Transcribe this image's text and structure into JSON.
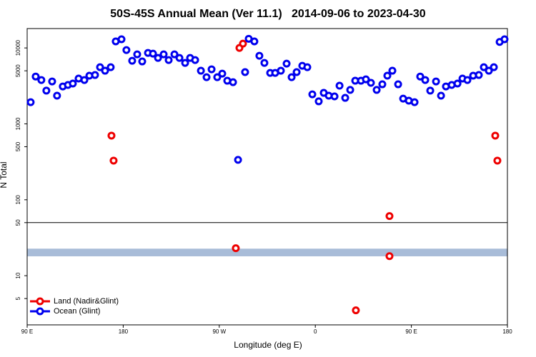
{
  "chart_data": {
    "type": "scatter",
    "title": "50S-45S Annual Mean (Ver 11.1)   2014-09-06 to 2023-04-30",
    "x_label": "Longitude (deg E)",
    "y_label": "N Total",
    "xlim": [
      90,
      540
    ],
    "xticks": [
      {
        "value": 90,
        "label": "90 E"
      },
      {
        "value": 180,
        "label": "180"
      },
      {
        "value": 270,
        "label": "90 W"
      },
      {
        "value": 360,
        "label": "0"
      },
      {
        "value": 450,
        "label": "90 E"
      },
      {
        "value": 540,
        "label": "180"
      }
    ],
    "ylim": [
      2.25,
      18000
    ],
    "log_y": true,
    "yticks": [
      5,
      10,
      50,
      100,
      500,
      1000,
      5000,
      10000
    ],
    "hline": 50,
    "band": [
      18,
      22.7
    ],
    "band_color": "#a8bcd8",
    "legend": "bottom-left",
    "series": [
      {
        "name": "Land (Nadir&Glint)",
        "color": "#ee0000",
        "x": [
          169.0,
          171.0,
          288.9,
          292.2,
          285.5,
          429.5,
          429.5,
          398.0,
          528.6,
          530.6
        ],
        "values": [
          700,
          328,
          10000,
          11400,
          23,
          61,
          18.1,
          3.5,
          700,
          328
        ]
      },
      {
        "name": "Ocean (Glint)",
        "color": "#0000ee",
        "x": [
          93.3,
          98.0,
          103.3,
          108.0,
          113.4,
          118.0,
          123.4,
          128.2,
          132.8,
          138.2,
          143.6,
          148.3,
          153.6,
          158.3,
          163.0,
          168.3,
          173.0,
          178.4,
          183.0,
          188.4,
          193.1,
          197.8,
          203.2,
          207.9,
          212.6,
          217.9,
          222.6,
          228.0,
          232.7,
          238.0,
          242.7,
          247.4,
          252.8,
          258.1,
          262.8,
          268.1,
          272.8,
          277.5,
          282.9,
          287.6,
          294.2,
          297.6,
          302.9,
          307.6,
          312.3,
          317.7,
          322.4,
          327.7,
          333.1,
          337.8,
          342.5,
          347.8,
          352.5,
          357.2,
          363.2,
          367.9,
          372.6,
          378.0,
          382.7,
          388.0,
          392.7,
          397.4,
          402.8,
          407.4,
          412.1,
          417.5,
          422.8,
          427.5,
          432.2,
          437.6,
          442.3,
          447.6,
          453.0,
          458.3,
          463.0,
          467.7,
          473.1,
          477.8,
          482.4,
          487.8,
          493.2,
          497.9,
          502.5,
          507.9,
          513.2,
          517.9,
          522.6,
          527.3,
          532.7,
          537.3
        ],
        "values": [
          1930,
          4200,
          3780,
          2740,
          3620,
          2350,
          3110,
          3250,
          3400,
          3950,
          3780,
          4310,
          4400,
          5570,
          5010,
          5570,
          12200,
          13000,
          9380,
          6780,
          8230,
          6640,
          8590,
          8410,
          7390,
          8230,
          6920,
          8230,
          7390,
          6350,
          7390,
          6920,
          5010,
          4120,
          5230,
          4120,
          4590,
          3700,
          3540,
          336,
          4800,
          13200,
          12200,
          7890,
          6350,
          4690,
          4690,
          5010,
          6210,
          4120,
          4800,
          5820,
          5570,
          2450,
          1980,
          2560,
          2350,
          2300,
          3180,
          2200,
          2800,
          3700,
          3700,
          3860,
          3470,
          2800,
          3320,
          4310,
          5010,
          3320,
          2150,
          2020,
          1930,
          4200,
          3780,
          2740,
          3620,
          2350,
          3110,
          3250,
          3400,
          3950,
          3780,
          4310,
          4400,
          5570,
          5010,
          5570,
          12000,
          13000
        ]
      }
    ]
  }
}
